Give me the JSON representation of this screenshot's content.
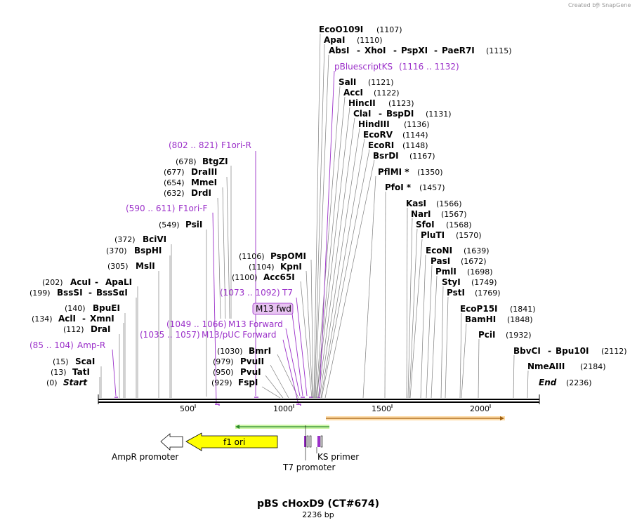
{
  "credit": "Created by",
  "brand": "SnapGene",
  "title": "pBS cHoxD9 (CT#674)",
  "subtitle": "2236 bp",
  "axis": {
    "ticks": [
      "500",
      "1000",
      "1500",
      "2000"
    ]
  },
  "features": {
    "f1ori": "f1 ori",
    "ampr_promoter": "AmpR promoter",
    "t7_promoter": "T7 promoter",
    "ks_primer": "KS primer",
    "m13_fwd": "M13 fwd"
  },
  "left_labels": [
    {
      "pos": "(678)",
      "name": "BtgZI"
    },
    {
      "pos": "(677)",
      "name": "DraIII"
    },
    {
      "pos": "(654)",
      "name": "MmeI"
    },
    {
      "pos": "(632)",
      "name": "DrdI"
    },
    {
      "pos": "(549)",
      "name": "PsiI"
    },
    {
      "pos": "(372)",
      "name": "BciVI"
    },
    {
      "pos": "(370)",
      "name": "BspHI"
    },
    {
      "pos": "(305)",
      "name": "MslI"
    },
    {
      "pos": "(202)",
      "name": "AcuI",
      "name2": "ApaLI"
    },
    {
      "pos": "(199)",
      "name": "BssSI",
      "name2": "BssSαI"
    },
    {
      "pos": "(140)",
      "name": "BpuEI"
    },
    {
      "pos": "(134)",
      "name": "AclI",
      "name2": "XmnI"
    },
    {
      "pos": "(112)",
      "name": "DraI"
    },
    {
      "pos": "(15)",
      "name": "ScaI"
    },
    {
      "pos": "(13)",
      "name": "TatI"
    },
    {
      "pos": "(0)",
      "name": "Start"
    }
  ],
  "left_primers": [
    {
      "range": "(802 .. 821)",
      "name": "F1ori-R"
    },
    {
      "range": "(590 .. 611)",
      "name": "F1ori-F"
    },
    {
      "range": "(85 .. 104)",
      "name": "Amp-R"
    }
  ],
  "mid_labels": [
    {
      "pos": "(1106)",
      "name": "PspOMI"
    },
    {
      "pos": "(1104)",
      "name": "KpnI"
    },
    {
      "pos": "(1100)",
      "name": "Acc65I"
    },
    {
      "pos": "(1030)",
      "name": "BmrI"
    },
    {
      "pos": "(979)",
      "name": "PvuII"
    },
    {
      "pos": "(950)",
      "name": "PvuI"
    },
    {
      "pos": "(929)",
      "name": "FspI"
    }
  ],
  "mid_primers": [
    {
      "range": "(1073 .. 1092)",
      "name": "T7"
    },
    {
      "range": "(1049 .. 1066)",
      "name": "M13 Forward"
    },
    {
      "range": "(1035 .. 1057)",
      "name": "M13/pUC Forward"
    }
  ],
  "right_labels": [
    {
      "name": "EcoO109I",
      "pos": "(1107)"
    },
    {
      "name": "ApaI",
      "pos": "(1110)"
    },
    {
      "name": "AbsI",
      "name2": "XhoI",
      "name3": "PspXI",
      "name4": "PaeR7I",
      "pos": "(1115)"
    },
    {
      "name": "SalI",
      "pos": "(1121)"
    },
    {
      "name": "AccI",
      "pos": "(1122)"
    },
    {
      "name": "HincII",
      "pos": "(1123)"
    },
    {
      "name": "ClaI",
      "name2": "BspDI",
      "pos": "(1131)"
    },
    {
      "name": "HindIII",
      "pos": "(1136)"
    },
    {
      "name": "EcoRV",
      "pos": "(1144)"
    },
    {
      "name": "EcoRI",
      "pos": "(1148)"
    },
    {
      "name": "BsrDI",
      "pos": "(1167)"
    },
    {
      "name": "PflMI *",
      "pos": "(1350)"
    },
    {
      "name": "PfoI *",
      "pos": "(1457)"
    },
    {
      "name": "KasI",
      "pos": "(1566)"
    },
    {
      "name": "NarI",
      "pos": "(1567)"
    },
    {
      "name": "SfoI",
      "pos": "(1568)"
    },
    {
      "name": "PluTI",
      "pos": "(1570)"
    },
    {
      "name": "EcoNI",
      "pos": "(1639)"
    },
    {
      "name": "PasI",
      "pos": "(1672)"
    },
    {
      "name": "PmlI",
      "pos": "(1698)"
    },
    {
      "name": "StyI",
      "pos": "(1749)"
    },
    {
      "name": "PstI",
      "pos": "(1769)"
    },
    {
      "name": "EcoP15I",
      "pos": "(1841)"
    },
    {
      "name": "BamHI",
      "pos": "(1848)"
    },
    {
      "name": "PciI",
      "pos": "(1932)"
    },
    {
      "name": "BbvCI",
      "name2": "Bpu10I",
      "pos": "(2112)"
    },
    {
      "name": "NmeAIII",
      "pos": "(2184)"
    },
    {
      "name": "End",
      "pos": "(2236)"
    }
  ],
  "right_primers": [
    {
      "name": "pBluescriptKS",
      "range": "(1116 .. 1132)"
    }
  ]
}
